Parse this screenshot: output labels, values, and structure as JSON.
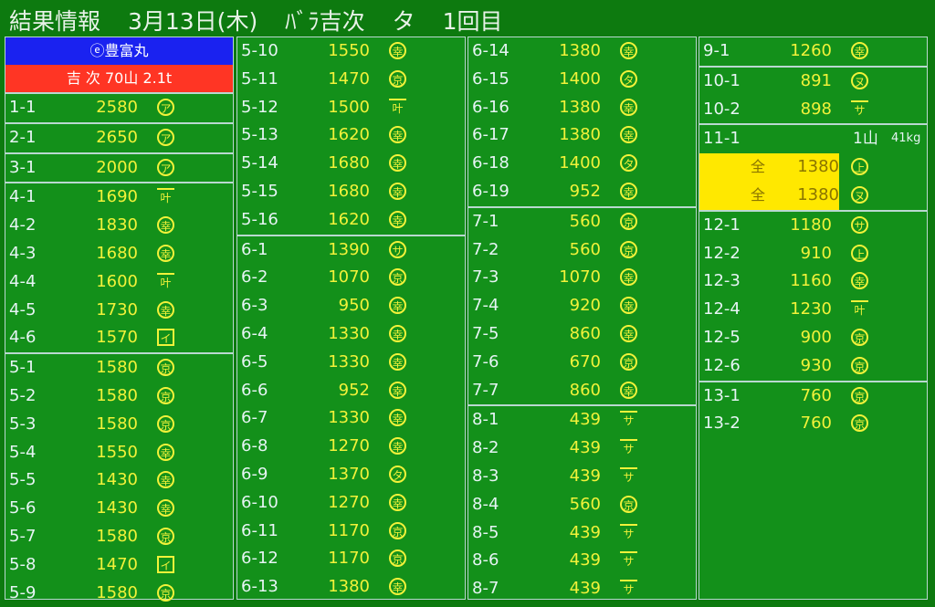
{
  "header": {
    "title": "結果情報",
    "date": "3月13日(木)",
    "item": "ﾊﾞﾗ吉次",
    "session": "タ",
    "round": "1回目"
  },
  "vessel": {
    "name": "ⓔ豊富丸",
    "summary": "吉 次 70山 2.1t",
    "name_bg": "#1a22f0",
    "summary_bg": "#ff3524"
  },
  "colors": {
    "background": "#13901a",
    "price": "#f2f23a",
    "lot": "#e6f4f4",
    "highlight": "#ffe800"
  },
  "columns": [
    [
      [
        {
          "lot": "1-1",
          "price": "2580",
          "mark": "ア",
          "style": "circle"
        }
      ],
      [
        {
          "lot": "2-1",
          "price": "2650",
          "mark": "ア",
          "style": "circle"
        }
      ],
      [
        {
          "lot": "3-1",
          "price": "2000",
          "mark": "ア",
          "style": "circle"
        }
      ],
      [
        {
          "lot": "4-1",
          "price": "1690",
          "mark": "叶",
          "style": "bar"
        },
        {
          "lot": "4-2",
          "price": "1830",
          "mark": "幸",
          "style": "circle"
        },
        {
          "lot": "4-3",
          "price": "1680",
          "mark": "幸",
          "style": "circle"
        },
        {
          "lot": "4-4",
          "price": "1600",
          "mark": "叶",
          "style": "bar"
        },
        {
          "lot": "4-5",
          "price": "1730",
          "mark": "幸",
          "style": "circle"
        },
        {
          "lot": "4-6",
          "price": "1570",
          "mark": "イ",
          "style": "square"
        }
      ],
      [
        {
          "lot": "5-1",
          "price": "1580",
          "mark": "京",
          "style": "circle"
        },
        {
          "lot": "5-2",
          "price": "1580",
          "mark": "京",
          "style": "circle"
        },
        {
          "lot": "5-3",
          "price": "1580",
          "mark": "京",
          "style": "circle"
        },
        {
          "lot": "5-4",
          "price": "1550",
          "mark": "幸",
          "style": "circle"
        },
        {
          "lot": "5-5",
          "price": "1430",
          "mark": "幸",
          "style": "circle"
        },
        {
          "lot": "5-6",
          "price": "1430",
          "mark": "幸",
          "style": "circle"
        },
        {
          "lot": "5-7",
          "price": "1580",
          "mark": "京",
          "style": "circle"
        },
        {
          "lot": "5-8",
          "price": "1470",
          "mark": "イ",
          "style": "square"
        },
        {
          "lot": "5-9",
          "price": "1580",
          "mark": "京",
          "style": "circle"
        }
      ]
    ],
    [
      [
        {
          "lot": "5-10",
          "price": "1550",
          "mark": "幸",
          "style": "circle"
        },
        {
          "lot": "5-11",
          "price": "1470",
          "mark": "京",
          "style": "circle"
        },
        {
          "lot": "5-12",
          "price": "1500",
          "mark": "叶",
          "style": "bar"
        },
        {
          "lot": "5-13",
          "price": "1620",
          "mark": "幸",
          "style": "circle"
        },
        {
          "lot": "5-14",
          "price": "1680",
          "mark": "幸",
          "style": "circle"
        },
        {
          "lot": "5-15",
          "price": "1680",
          "mark": "幸",
          "style": "circle"
        },
        {
          "lot": "5-16",
          "price": "1620",
          "mark": "幸",
          "style": "circle"
        }
      ],
      [
        {
          "lot": "6-1",
          "price": "1390",
          "mark": "サ",
          "style": "circle"
        },
        {
          "lot": "6-2",
          "price": "1070",
          "mark": "京",
          "style": "circle"
        },
        {
          "lot": "6-3",
          "price": "950",
          "mark": "幸",
          "style": "circle"
        },
        {
          "lot": "6-4",
          "price": "1330",
          "mark": "幸",
          "style": "circle"
        },
        {
          "lot": "6-5",
          "price": "1330",
          "mark": "幸",
          "style": "circle"
        },
        {
          "lot": "6-6",
          "price": "952",
          "mark": "幸",
          "style": "circle"
        },
        {
          "lot": "6-7",
          "price": "1330",
          "mark": "幸",
          "style": "circle"
        },
        {
          "lot": "6-8",
          "price": "1270",
          "mark": "幸",
          "style": "circle"
        },
        {
          "lot": "6-9",
          "price": "1370",
          "mark": "タ",
          "style": "circle"
        },
        {
          "lot": "6-10",
          "price": "1270",
          "mark": "幸",
          "style": "circle"
        },
        {
          "lot": "6-11",
          "price": "1170",
          "mark": "京",
          "style": "circle"
        },
        {
          "lot": "6-12",
          "price": "1170",
          "mark": "京",
          "style": "circle"
        },
        {
          "lot": "6-13",
          "price": "1380",
          "mark": "幸",
          "style": "circle"
        }
      ]
    ],
    [
      [
        {
          "lot": "6-14",
          "price": "1380",
          "mark": "幸",
          "style": "circle"
        },
        {
          "lot": "6-15",
          "price": "1400",
          "mark": "タ",
          "style": "circle"
        },
        {
          "lot": "6-16",
          "price": "1380",
          "mark": "幸",
          "style": "circle"
        },
        {
          "lot": "6-17",
          "price": "1380",
          "mark": "幸",
          "style": "circle"
        },
        {
          "lot": "6-18",
          "price": "1400",
          "mark": "タ",
          "style": "circle"
        },
        {
          "lot": "6-19",
          "price": "952",
          "mark": "幸",
          "style": "circle"
        }
      ],
      [
        {
          "lot": "7-1",
          "price": "560",
          "mark": "京",
          "style": "circle"
        },
        {
          "lot": "7-2",
          "price": "560",
          "mark": "京",
          "style": "circle"
        },
        {
          "lot": "7-3",
          "price": "1070",
          "mark": "幸",
          "style": "circle"
        },
        {
          "lot": "7-4",
          "price": "920",
          "mark": "幸",
          "style": "circle"
        },
        {
          "lot": "7-5",
          "price": "860",
          "mark": "幸",
          "style": "circle"
        },
        {
          "lot": "7-6",
          "price": "670",
          "mark": "京",
          "style": "circle"
        },
        {
          "lot": "7-7",
          "price": "860",
          "mark": "幸",
          "style": "circle"
        }
      ],
      [
        {
          "lot": "8-1",
          "price": "439",
          "mark": "サ",
          "style": "bar"
        },
        {
          "lot": "8-2",
          "price": "439",
          "mark": "サ",
          "style": "bar"
        },
        {
          "lot": "8-3",
          "price": "439",
          "mark": "サ",
          "style": "bar"
        },
        {
          "lot": "8-4",
          "price": "560",
          "mark": "京",
          "style": "circle"
        },
        {
          "lot": "8-5",
          "price": "439",
          "mark": "サ",
          "style": "bar"
        },
        {
          "lot": "8-6",
          "price": "439",
          "mark": "サ",
          "style": "bar"
        },
        {
          "lot": "8-7",
          "price": "439",
          "mark": "サ",
          "style": "bar"
        }
      ]
    ],
    [
      [
        {
          "lot": "9-1",
          "price": "1260",
          "mark": "幸",
          "style": "circle"
        }
      ],
      [
        {
          "lot": "10-1",
          "price": "891",
          "mark": "ヌ",
          "style": "circle"
        },
        {
          "lot": "10-2",
          "price": "898",
          "mark": "サ",
          "style": "bar"
        }
      ],
      [
        {
          "lot": "11-1",
          "price": "",
          "mark": "",
          "style": "",
          "count": "1山",
          "weight": "41kg"
        },
        {
          "lot": "",
          "zen": "全",
          "price": "1380",
          "mark": "上",
          "style": "circle",
          "highlight": true
        },
        {
          "lot": "",
          "zen": "全",
          "price": "1380",
          "mark": "ヌ",
          "style": "circle",
          "highlight": true
        }
      ],
      [
        {
          "lot": "12-1",
          "price": "1180",
          "mark": "サ",
          "style": "circle"
        },
        {
          "lot": "12-2",
          "price": "910",
          "mark": "上",
          "style": "circle"
        },
        {
          "lot": "12-3",
          "price": "1160",
          "mark": "幸",
          "style": "circle"
        },
        {
          "lot": "12-4",
          "price": "1230",
          "mark": "叶",
          "style": "bar"
        },
        {
          "lot": "12-5",
          "price": "900",
          "mark": "京",
          "style": "circle"
        },
        {
          "lot": "12-6",
          "price": "930",
          "mark": "京",
          "style": "circle"
        }
      ],
      [
        {
          "lot": "13-1",
          "price": "760",
          "mark": "京",
          "style": "circle"
        },
        {
          "lot": "13-2",
          "price": "760",
          "mark": "京",
          "style": "circle"
        }
      ]
    ]
  ]
}
